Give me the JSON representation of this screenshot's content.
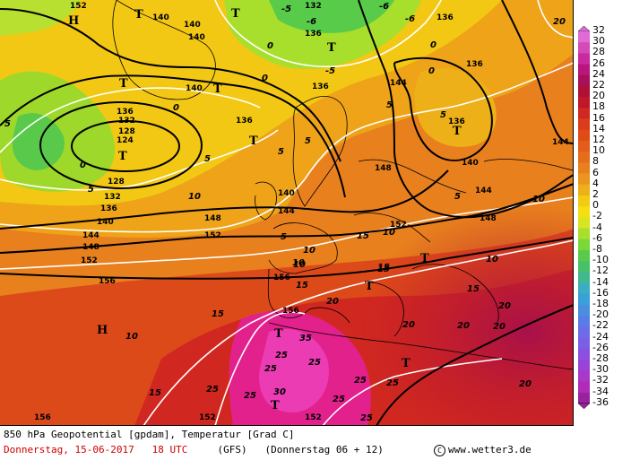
{
  "map": {
    "title": "850 hPa Geopotential [gpdam], Temperatur [Grad C]",
    "date_label": "Donnerstag, 15-06-2017",
    "time_label": "18 UTC",
    "model_label": "(GFS)",
    "valid_label": "(Donnerstag 06 + 12)",
    "copyright_symbol": "C",
    "source_label": "www.wetter3.de"
  },
  "legend": {
    "ticks": [
      "32",
      "30",
      "28",
      "26",
      "24",
      "22",
      "20",
      "18",
      "16",
      "14",
      "12",
      "10",
      "8",
      "6",
      "4",
      "2",
      "0",
      "-2",
      "-4",
      "-6",
      "-8",
      "-10",
      "-12",
      "-14",
      "-16",
      "-18",
      "-20",
      "-22",
      "-24",
      "-26",
      "-28",
      "-30",
      "-32",
      "-34",
      "-36"
    ],
    "colors": [
      "#e06ad6",
      "#d44ab8",
      "#c92aa0",
      "#b8157d",
      "#a8105a",
      "#b01034",
      "#c01828",
      "#d02820",
      "#dd3c1a",
      "#e04c18",
      "#e25d1a",
      "#e56e1c",
      "#e8801e",
      "#eb9420",
      "#eeb018",
      "#f3ca14",
      "#f5df10",
      "#d9e520",
      "#a8de2c",
      "#7cd838",
      "#58cc4a",
      "#48c06a",
      "#40b890",
      "#38aec0",
      "#3aa0d8",
      "#4a8ee0",
      "#5a7ce6",
      "#6c6cea",
      "#7a5ee6",
      "#8a50e0",
      "#9844d8",
      "#a838c8",
      "#b02cb8",
      "#9a22a0"
    ]
  },
  "labels": {
    "symbols": [
      "H",
      "T",
      "T",
      "T",
      "T",
      "T",
      "T",
      "T",
      "T",
      "T",
      "T",
      "T",
      "T",
      "T",
      "H"
    ],
    "pressure": [
      "152",
      "140",
      "140",
      "140",
      "132",
      "136",
      "136",
      "140",
      "136",
      "132",
      "128",
      "124",
      "128",
      "132",
      "136",
      "140",
      "144",
      "148",
      "152",
      "156",
      "156",
      "136",
      "140",
      "144",
      "148",
      "152",
      "156",
      "152",
      "144",
      "144",
      "140",
      "136",
      "148",
      "156",
      "152",
      "152",
      "144",
      "136",
      "136",
      "148"
    ],
    "temperatures": [
      "-5",
      "-6",
      "-6",
      "-6",
      "0",
      "0",
      "0",
      "0",
      "0",
      "5",
      "5",
      "5",
      "5",
      "5",
      "5",
      "10",
      "10",
      "10",
      "10",
      "10",
      "10",
      "15",
      "15",
      "15",
      "15",
      "15",
      "15",
      "20",
      "20",
      "20",
      "20",
      "20",
      "20",
      "20",
      "25",
      "25",
      "25",
      "25",
      "25",
      "25",
      "25",
      "25",
      "25",
      "30",
      "35",
      "10",
      "5",
      "5",
      "5",
      "0",
      "-5",
      "15",
      "10"
    ]
  }
}
